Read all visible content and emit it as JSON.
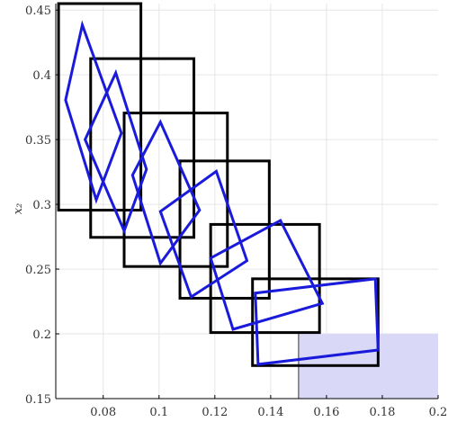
{
  "chart_data": {
    "type": "scatter",
    "title": "",
    "xlabel": "",
    "ylabel": "x₂",
    "xlim": [
      0.063,
      0.2
    ],
    "ylim": [
      0.15,
      0.455
    ],
    "grid": true,
    "xticks": [
      0.08,
      0.1,
      0.12,
      0.14,
      0.16,
      0.18,
      0.2
    ],
    "xtick_labels": [
      "0.08",
      "0.1",
      "0.12",
      "0.14",
      "0.16",
      "0.18",
      "0.2"
    ],
    "yticks": [
      0.15,
      0.2,
      0.25,
      0.3,
      0.35,
      0.4,
      0.45
    ],
    "ytick_labels": [
      "0.15",
      "0.2",
      "0.25",
      "0.3",
      "0.35",
      "0.4",
      "0.45"
    ],
    "colors": {
      "box": "#000000",
      "zonotope": "#1a1adb",
      "target": "#d9d9f7",
      "grid": "#e6e6e6"
    },
    "target_region": {
      "x": [
        0.15,
        0.2
      ],
      "y": [
        0.15,
        0.2
      ]
    },
    "series": [
      {
        "kind": "box",
        "items": [
          {
            "x": [
              0.064,
              0.0935
            ],
            "y": [
              0.2955,
              0.455
            ]
          },
          {
            "x": [
              0.0755,
              0.1125
            ],
            "y": [
              0.2745,
              0.4125
            ]
          },
          {
            "x": [
              0.0875,
              0.1245
            ],
            "y": [
              0.252,
              0.3705
            ]
          },
          {
            "x": [
              0.1075,
              0.1395
            ],
            "y": [
              0.2275,
              0.3335
            ]
          },
          {
            "x": [
              0.1185,
              0.1575
            ],
            "y": [
              0.201,
              0.2845
            ]
          },
          {
            "x": [
              0.1335,
              0.1785
            ],
            "y": [
              0.1755,
              0.2425
            ]
          }
        ]
      },
      {
        "kind": "zonotope",
        "items": [
          [
            [
              0.0725,
              0.4385
            ],
            [
              0.0865,
              0.355
            ],
            [
              0.0775,
              0.3035
            ],
            [
              0.0665,
              0.3805
            ]
          ],
          [
            [
              0.0845,
              0.4015
            ],
            [
              0.0955,
              0.327
            ],
            [
              0.0875,
              0.2795
            ],
            [
              0.0735,
              0.35
            ]
          ],
          [
            [
              0.1005,
              0.3635
            ],
            [
              0.1145,
              0.2955
            ],
            [
              0.1005,
              0.2545
            ],
            [
              0.0905,
              0.3225
            ]
          ],
          [
            [
              0.1205,
              0.3255
            ],
            [
              0.1315,
              0.2565
            ],
            [
              0.1115,
              0.2285
            ],
            [
              0.1005,
              0.2945
            ]
          ],
          [
            [
              0.1435,
              0.2875
            ],
            [
              0.1585,
              0.2235
            ],
            [
              0.1265,
              0.2035
            ],
            [
              0.1185,
              0.2585
            ]
          ],
          [
            [
              0.1775,
              0.2425
            ],
            [
              0.1785,
              0.1875
            ],
            [
              0.1355,
              0.1765
            ],
            [
              0.1345,
              0.2315
            ]
          ]
        ]
      }
    ]
  }
}
